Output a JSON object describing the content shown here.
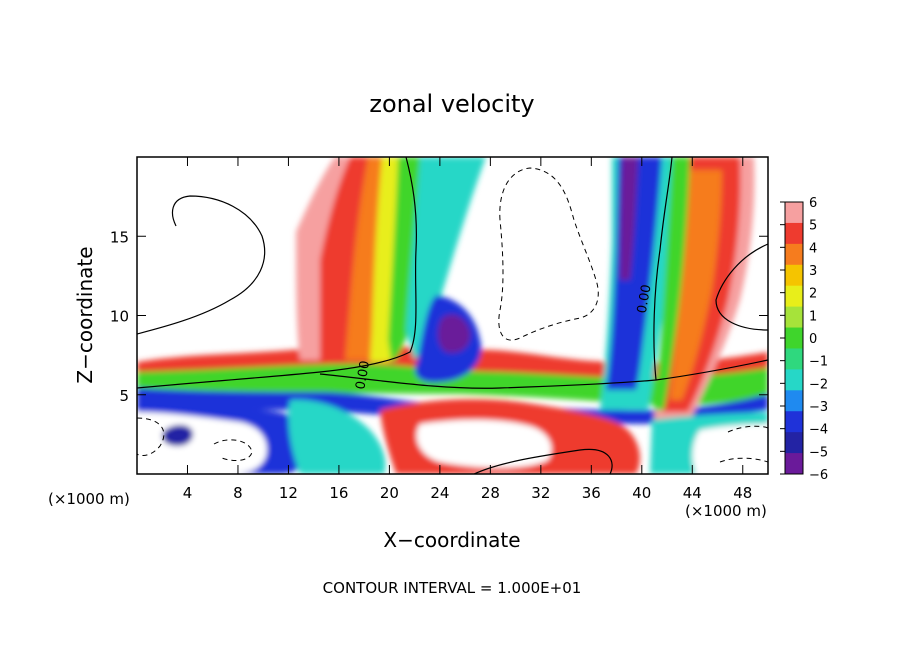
{
  "chart_data": {
    "type": "heatmap",
    "title": "zonal velocity",
    "xlabel": "X−coordinate",
    "ylabel": "Z−coordinate",
    "x_unit_left": "(×1000 m)",
    "x_unit_right": "(×1000 m)",
    "footer": "CONTOUR INTERVAL = 1.000E+01",
    "xlim": [
      0,
      50
    ],
    "ylim": [
      0,
      20
    ],
    "x_ticks": [
      4,
      8,
      12,
      16,
      20,
      24,
      28,
      32,
      36,
      40,
      44,
      48
    ],
    "y_ticks": [
      5,
      10,
      15
    ],
    "contour_labels": [
      {
        "x": 18.2,
        "y": 6.2,
        "text": "0.00"
      },
      {
        "x": 40.5,
        "y": 11.0,
        "text": "0.00"
      }
    ],
    "colorbar": {
      "ticks": [
        6,
        5,
        4,
        3,
        2,
        1,
        0,
        -1,
        -2,
        -3,
        -4,
        -5,
        -6
      ],
      "tick_labels": [
        "6",
        "5",
        "4",
        "3",
        "2",
        "1",
        "0",
        "−1",
        "−2",
        "−3",
        "−4",
        "−5",
        "−6"
      ],
      "colors": [
        "#f6a0a0",
        "#ee3b2f",
        "#f67c1e",
        "#f5c400",
        "#e8ee1a",
        "#a6e33a",
        "#3fd52c",
        "#2fd87e",
        "#26d7c7",
        "#1f8af0",
        "#1f32d9",
        "#2323a4",
        "#6a1a9a"
      ]
    },
    "features": [
      {
        "name": "positive plume",
        "x_range": [
          13,
          22
        ],
        "z_range": [
          6,
          20
        ],
        "peak": 6
      },
      {
        "name": "negative tongue",
        "x_range": [
          21,
          28
        ],
        "z_range": [
          4,
          20
        ],
        "peak": -5
      },
      {
        "name": "negative column",
        "x_range": [
          38,
          41
        ],
        "z_range": [
          4,
          20
        ],
        "peak": -6
      },
      {
        "name": "positive band",
        "x_range": [
          42,
          48
        ],
        "z_range": [
          2,
          20
        ],
        "peak": 6
      },
      {
        "name": "low-level shear layer",
        "x_range": [
          0,
          50
        ],
        "z_range": [
          3,
          7
        ],
        "peak": 5
      }
    ]
  }
}
